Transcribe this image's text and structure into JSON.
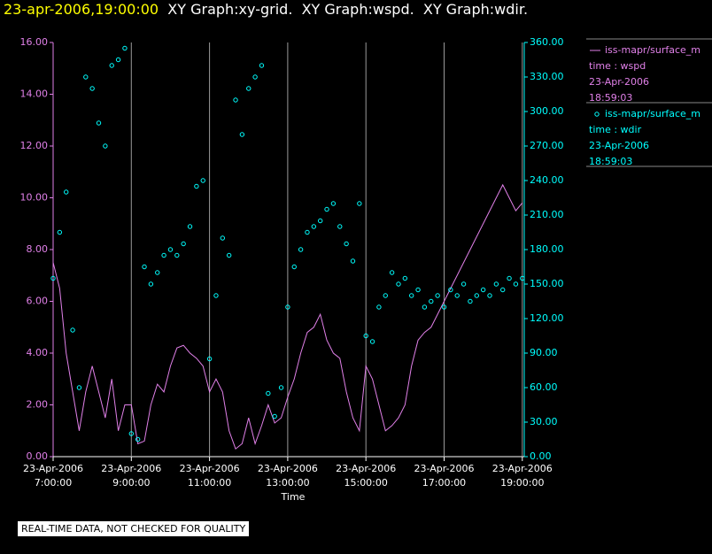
{
  "chart_data": {
    "type": "line-scatter",
    "title_time": "23-apr-2006,19:00:00",
    "title": "  XY Graph:xy-grid.  XY Graph:wspd.  XY Graph:wdir.",
    "xlabel": "Time",
    "note": "REAL-TIME DATA, NOT CHECKED FOR QUALITY",
    "x": [
      "2006-04-23T07:00",
      "2006-04-23T07:10",
      "2006-04-23T07:20",
      "2006-04-23T07:30",
      "2006-04-23T07:40",
      "2006-04-23T07:50",
      "2006-04-23T08:00",
      "2006-04-23T08:10",
      "2006-04-23T08:20",
      "2006-04-23T08:30",
      "2006-04-23T08:40",
      "2006-04-23T08:50",
      "2006-04-23T09:00",
      "2006-04-23T09:10",
      "2006-04-23T09:20",
      "2006-04-23T09:30",
      "2006-04-23T09:40",
      "2006-04-23T09:50",
      "2006-04-23T10:00",
      "2006-04-23T10:10",
      "2006-04-23T10:20",
      "2006-04-23T10:30",
      "2006-04-23T10:40",
      "2006-04-23T10:50",
      "2006-04-23T11:00",
      "2006-04-23T11:10",
      "2006-04-23T11:20",
      "2006-04-23T11:30",
      "2006-04-23T11:40",
      "2006-04-23T11:50",
      "2006-04-23T12:00",
      "2006-04-23T12:10",
      "2006-04-23T12:20",
      "2006-04-23T12:30",
      "2006-04-23T12:40",
      "2006-04-23T12:50",
      "2006-04-23T13:00",
      "2006-04-23T13:10",
      "2006-04-23T13:20",
      "2006-04-23T13:30",
      "2006-04-23T13:40",
      "2006-04-23T13:50",
      "2006-04-23T14:00",
      "2006-04-23T14:10",
      "2006-04-23T14:20",
      "2006-04-23T14:30",
      "2006-04-23T14:40",
      "2006-04-23T14:50",
      "2006-04-23T15:00",
      "2006-04-23T15:10",
      "2006-04-23T15:20",
      "2006-04-23T15:30",
      "2006-04-23T15:40",
      "2006-04-23T15:50",
      "2006-04-23T16:00",
      "2006-04-23T16:10",
      "2006-04-23T16:20",
      "2006-04-23T16:30",
      "2006-04-23T16:40",
      "2006-04-23T16:50",
      "2006-04-23T17:00",
      "2006-04-23T17:10",
      "2006-04-23T17:20",
      "2006-04-23T17:30",
      "2006-04-23T17:40",
      "2006-04-23T17:50",
      "2006-04-23T18:00",
      "2006-04-23T18:10",
      "2006-04-23T18:20",
      "2006-04-23T18:30",
      "2006-04-23T18:40",
      "2006-04-23T18:50",
      "2006-04-23T19:00"
    ],
    "xlim": [
      "2006-04-23T07:00",
      "2006-04-23T19:03"
    ],
    "xticks": [
      {
        "value": "2006-04-23T07:00",
        "label": "23-Apr-2006\n7:00:00"
      },
      {
        "value": "2006-04-23T09:00",
        "label": "23-Apr-2006\n9:00:00"
      },
      {
        "value": "2006-04-23T11:00",
        "label": "23-Apr-2006\n11:00:00"
      },
      {
        "value": "2006-04-23T13:00",
        "label": "23-Apr-2006\n13:00:00"
      },
      {
        "value": "2006-04-23T15:00",
        "label": "23-Apr-2006\n15:00:00"
      },
      {
        "value": "2006-04-23T17:00",
        "label": "23-Apr-2006\n17:00:00"
      },
      {
        "value": "2006-04-23T19:00",
        "label": "23-Apr-2006\n19:00:00"
      }
    ],
    "ylim": [
      0,
      16
    ],
    "yticks": [
      {
        "value": 0,
        "label": "0.00"
      },
      {
        "value": 2,
        "label": "2.00"
      },
      {
        "value": 4,
        "label": "4.00"
      },
      {
        "value": 6,
        "label": "6.00"
      },
      {
        "value": 8,
        "label": "8.00"
      },
      {
        "value": 10,
        "label": "10.00"
      },
      {
        "value": 12,
        "label": "12.00"
      },
      {
        "value": 14,
        "label": "14.00"
      },
      {
        "value": 16,
        "label": "16.00"
      }
    ],
    "y2lim": [
      0,
      360
    ],
    "y2ticks": [
      {
        "value": 0,
        "label": "0.00"
      },
      {
        "value": 30,
        "label": "30.00"
      },
      {
        "value": 60,
        "label": "60.00"
      },
      {
        "value": 90,
        "label": "90.00"
      },
      {
        "value": 120,
        "label": "120.00"
      },
      {
        "value": 150,
        "label": "150.00"
      },
      {
        "value": 180,
        "label": "180.00"
      },
      {
        "value": 210,
        "label": "210.00"
      },
      {
        "value": 240,
        "label": "240.00"
      },
      {
        "value": 270,
        "label": "270.00"
      },
      {
        "value": 300,
        "label": "300.00"
      },
      {
        "value": 330,
        "label": "330.00"
      },
      {
        "value": 360,
        "label": "360.00"
      }
    ],
    "grid": true,
    "series": [
      {
        "name": "iss-mapr/surface_m",
        "legend": [
          "time : wspd",
          "23-Apr-2006",
          "18:59:03"
        ],
        "color": "#e080e8",
        "style": "line",
        "axis": "y",
        "values": [
          7.5,
          6.5,
          4,
          2.5,
          1,
          2.5,
          3.5,
          2.5,
          1.5,
          3,
          1,
          2,
          2,
          0.5,
          0.6,
          2,
          2.8,
          2.5,
          3.5,
          4.2,
          4.3,
          4,
          3.8,
          3.5,
          2.5,
          3,
          2.5,
          1,
          0.3,
          0.5,
          1.5,
          0.5,
          1.2,
          2,
          1.3,
          1.5,
          2.3,
          3,
          4,
          4.8,
          5,
          5.5,
          4.5,
          4,
          3.8,
          2.5,
          1.5,
          1,
          3.5,
          3,
          2,
          1,
          1.2,
          1.5,
          2,
          3.5,
          4.5,
          4.8,
          5,
          5.5,
          6,
          6.5,
          7,
          7.5,
          8,
          8.5,
          9,
          9.5,
          10,
          10.5,
          10,
          9.5,
          9.8
        ]
      },
      {
        "name": "iss-mapr/surface_m",
        "legend": [
          "time : wdir",
          "23-Apr-2006",
          "18:59:03"
        ],
        "color": "#00ffff",
        "style": "marker",
        "axis": "y2",
        "values": [
          155,
          195,
          230,
          110,
          60,
          330,
          320,
          290,
          270,
          340,
          345,
          355,
          20,
          15,
          165,
          150,
          160,
          175,
          180,
          175,
          185,
          200,
          235,
          240,
          85,
          140,
          190,
          175,
          310,
          280,
          320,
          330,
          340,
          55,
          35,
          60,
          130,
          165,
          180,
          195,
          200,
          205,
          215,
          220,
          200,
          185,
          170,
          220,
          105,
          100,
          130,
          140,
          160,
          150,
          155,
          140,
          145,
          130,
          135,
          140,
          130,
          145,
          140,
          150,
          135,
          140,
          145,
          140,
          150,
          145,
          155,
          150,
          155
        ]
      }
    ]
  }
}
